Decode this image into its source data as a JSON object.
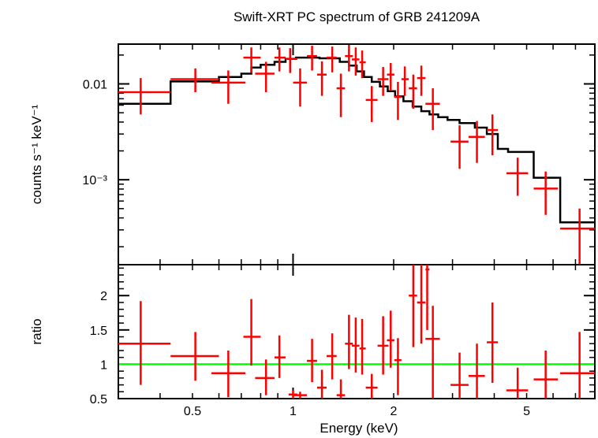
{
  "chart_data": [
    {
      "type": "scatter",
      "title": "Swift-XRT PC spectrum of GRB 241209A",
      "ylabel": "counts s⁻¹ keV⁻¹",
      "xlabel": "",
      "xscale": "log",
      "yscale": "log",
      "xlim": [
        0.3,
        8.0
      ],
      "ylim": [
        0.00013,
        0.026
      ],
      "yticks": [
        {
          "value": 0.01,
          "label": "0.01"
        },
        {
          "value": 0.001,
          "label": "10⁻³"
        }
      ],
      "series": [
        {
          "kind": "data-with-errors",
          "color": "#ff0000",
          "points": [
            {
              "x": 0.35,
              "xlo": 0.3,
              "xhi": 0.43,
              "y": 0.0082,
              "ylo": 0.0048,
              "yhi": 0.0115
            },
            {
              "x": 0.51,
              "xlo": 0.43,
              "xhi": 0.6,
              "y": 0.0112,
              "ylo": 0.0082,
              "yhi": 0.0145
            },
            {
              "x": 0.64,
              "xlo": 0.57,
              "xhi": 0.72,
              "y": 0.0103,
              "ylo": 0.0062,
              "yhi": 0.0138
            },
            {
              "x": 0.75,
              "xlo": 0.71,
              "xhi": 0.8,
              "y": 0.0188,
              "ylo": 0.013,
              "yhi": 0.024
            },
            {
              "x": 0.83,
              "xlo": 0.77,
              "xhi": 0.88,
              "y": 0.0128,
              "ylo": 0.0082,
              "yhi": 0.017
            },
            {
              "x": 0.91,
              "xlo": 0.88,
              "xhi": 0.95,
              "y": 0.0188,
              "ylo": 0.0135,
              "yhi": 0.024
            },
            {
              "x": 0.98,
              "xlo": 0.95,
              "xhi": 1.03,
              "y": 0.0183,
              "ylo": 0.013,
              "yhi": 0.0236
            },
            {
              "x": 1.05,
              "xlo": 1.0,
              "xhi": 1.1,
              "y": 0.0103,
              "ylo": 0.0058,
              "yhi": 0.0145
            },
            {
              "x": 1.14,
              "xlo": 1.1,
              "xhi": 1.18,
              "y": 0.0195,
              "ylo": 0.0138,
              "yhi": 0.025
            },
            {
              "x": 1.22,
              "xlo": 1.18,
              "xhi": 1.26,
              "y": 0.0125,
              "ylo": 0.0075,
              "yhi": 0.0172
            },
            {
              "x": 1.31,
              "xlo": 1.26,
              "xhi": 1.35,
              "y": 0.0188,
              "ylo": 0.0132,
              "yhi": 0.0245
            },
            {
              "x": 1.39,
              "xlo": 1.35,
              "xhi": 1.43,
              "y": 0.009,
              "ylo": 0.0045,
              "yhi": 0.0128
            },
            {
              "x": 1.47,
              "xlo": 1.43,
              "xhi": 1.51,
              "y": 0.0195,
              "ylo": 0.0135,
              "yhi": 0.0255
            },
            {
              "x": 1.54,
              "xlo": 1.5,
              "xhi": 1.58,
              "y": 0.018,
              "ylo": 0.0122,
              "yhi": 0.024
            },
            {
              "x": 1.61,
              "xlo": 1.58,
              "xhi": 1.65,
              "y": 0.0168,
              "ylo": 0.0115,
              "yhi": 0.0223
            },
            {
              "x": 1.72,
              "xlo": 1.65,
              "xhi": 1.79,
              "y": 0.0068,
              "ylo": 0.004,
              "yhi": 0.0095
            },
            {
              "x": 1.86,
              "xlo": 1.79,
              "xhi": 1.93,
              "y": 0.0112,
              "ylo": 0.0075,
              "yhi": 0.015
            },
            {
              "x": 1.96,
              "xlo": 1.91,
              "xhi": 2.01,
              "y": 0.0125,
              "ylo": 0.0085,
              "yhi": 0.0165
            },
            {
              "x": 2.06,
              "xlo": 2.01,
              "xhi": 2.11,
              "y": 0.0073,
              "ylo": 0.0042,
              "yhi": 0.0105
            },
            {
              "x": 2.16,
              "xlo": 2.11,
              "xhi": 2.22,
              "y": 0.0112,
              "ylo": 0.0075,
              "yhi": 0.0152
            },
            {
              "x": 2.29,
              "xlo": 2.22,
              "xhi": 2.35,
              "y": 0.009,
              "ylo": 0.0055,
              "yhi": 0.0125
            },
            {
              "x": 2.42,
              "xlo": 2.35,
              "xhi": 2.49,
              "y": 0.0115,
              "ylo": 0.0075,
              "yhi": 0.0155
            },
            {
              "x": 2.62,
              "xlo": 2.49,
              "xhi": 2.75,
              "y": 0.0062,
              "ylo": 0.0033,
              "yhi": 0.009
            },
            {
              "x": 3.15,
              "xlo": 2.96,
              "xhi": 3.35,
              "y": 0.0025,
              "ylo": 0.0013,
              "yhi": 0.0037
            },
            {
              "x": 3.55,
              "xlo": 3.35,
              "xhi": 3.75,
              "y": 0.0028,
              "ylo": 0.0015,
              "yhi": 0.0041
            },
            {
              "x": 3.95,
              "xlo": 3.8,
              "xhi": 4.1,
              "y": 0.0033,
              "ylo": 0.0018,
              "yhi": 0.0048
            },
            {
              "x": 4.7,
              "xlo": 4.35,
              "xhi": 5.05,
              "y": 0.00117,
              "ylo": 0.00068,
              "yhi": 0.0017
            },
            {
              "x": 5.7,
              "xlo": 5.25,
              "xhi": 6.2,
              "y": 0.00081,
              "ylo": 0.00043,
              "yhi": 0.00122
            },
            {
              "x": 7.2,
              "xlo": 6.3,
              "xhi": 8.0,
              "y": 0.00031,
              "ylo": 0.00013,
              "yhi": 0.0005
            }
          ]
        },
        {
          "kind": "model-step",
          "color": "#000000",
          "steps": [
            {
              "xlo": 0.3,
              "xhi": 0.43,
              "y": 0.0062
            },
            {
              "xlo": 0.43,
              "xhi": 0.6,
              "y": 0.0106
            },
            {
              "xlo": 0.6,
              "xhi": 0.7,
              "y": 0.0118
            },
            {
              "xlo": 0.7,
              "xhi": 0.75,
              "y": 0.0128
            },
            {
              "xlo": 0.75,
              "xhi": 0.8,
              "y": 0.0148
            },
            {
              "xlo": 0.8,
              "xhi": 0.88,
              "y": 0.0158
            },
            {
              "xlo": 0.88,
              "xhi": 0.95,
              "y": 0.017
            },
            {
              "xlo": 0.95,
              "xhi": 1.02,
              "y": 0.0182
            },
            {
              "xlo": 1.02,
              "xhi": 1.2,
              "y": 0.0188
            },
            {
              "xlo": 1.2,
              "xhi": 1.38,
              "y": 0.0185
            },
            {
              "xlo": 1.38,
              "xhi": 1.47,
              "y": 0.017
            },
            {
              "xlo": 1.47,
              "xhi": 1.55,
              "y": 0.0155
            },
            {
              "xlo": 1.55,
              "xhi": 1.63,
              "y": 0.0135
            },
            {
              "xlo": 1.63,
              "xhi": 1.72,
              "y": 0.0118
            },
            {
              "xlo": 1.72,
              "xhi": 1.82,
              "y": 0.0105
            },
            {
              "xlo": 1.82,
              "xhi": 1.92,
              "y": 0.0094
            },
            {
              "xlo": 1.92,
              "xhi": 2.02,
              "y": 0.0084
            },
            {
              "xlo": 2.02,
              "xhi": 2.14,
              "y": 0.0074
            },
            {
              "xlo": 2.14,
              "xhi": 2.28,
              "y": 0.0066
            },
            {
              "xlo": 2.28,
              "xhi": 2.42,
              "y": 0.0058
            },
            {
              "xlo": 2.42,
              "xhi": 2.56,
              "y": 0.0052
            },
            {
              "xlo": 2.56,
              "xhi": 2.72,
              "y": 0.0048
            },
            {
              "xlo": 2.72,
              "xhi": 2.9,
              "y": 0.0045
            },
            {
              "xlo": 2.9,
              "xhi": 3.15,
              "y": 0.0042
            },
            {
              "xlo": 3.15,
              "xhi": 3.5,
              "y": 0.0039
            },
            {
              "xlo": 3.5,
              "xhi": 3.8,
              "y": 0.0035
            },
            {
              "xlo": 3.8,
              "xhi": 4.1,
              "y": 0.003
            },
            {
              "xlo": 4.1,
              "xhi": 4.4,
              "y": 0.0021
            },
            {
              "xlo": 4.4,
              "xhi": 5.25,
              "y": 0.00195
            },
            {
              "xlo": 5.25,
              "xhi": 6.3,
              "y": 0.00105
            },
            {
              "xlo": 6.3,
              "xhi": 8.0,
              "y": 0.00036
            }
          ]
        }
      ]
    },
    {
      "type": "scatter",
      "title": "",
      "xlabel": "Energy (keV)",
      "ylabel": "ratio",
      "xscale": "log",
      "yscale": "linear",
      "xlim": [
        0.3,
        8.0
      ],
      "ylim": [
        0.5,
        2.45
      ],
      "xticks": [
        {
          "value": 0.5,
          "label": "0.5"
        },
        {
          "value": 1,
          "label": "1"
        },
        {
          "value": 2,
          "label": "2"
        },
        {
          "value": 5,
          "label": "5"
        }
      ],
      "yticks": [
        {
          "value": 0.5,
          "label": "0.5"
        },
        {
          "value": 1,
          "label": "1"
        },
        {
          "value": 1.5,
          "label": "1.5"
        },
        {
          "value": 2,
          "label": "2"
        }
      ],
      "reference_line": {
        "y": 1,
        "color": "#00ff00"
      },
      "series": [
        {
          "kind": "ratio-with-errors",
          "color": "#ff0000",
          "points": [
            {
              "x": 0.35,
              "xlo": 0.3,
              "xhi": 0.43,
              "y": 1.3,
              "ylo": 0.7,
              "yhi": 1.92
            },
            {
              "x": 0.51,
              "xlo": 0.43,
              "xhi": 0.6,
              "y": 1.12,
              "ylo": 0.76,
              "yhi": 1.47
            },
            {
              "x": 0.64,
              "xlo": 0.57,
              "xhi": 0.72,
              "y": 0.87,
              "ylo": 0.52,
              "yhi": 1.2
            },
            {
              "x": 0.75,
              "xlo": 0.71,
              "xhi": 0.8,
              "y": 1.4,
              "ylo": 0.98,
              "yhi": 1.95
            },
            {
              "x": 0.83,
              "xlo": 0.77,
              "xhi": 0.88,
              "y": 0.8,
              "ylo": 0.55,
              "yhi": 1.07
            },
            {
              "x": 0.91,
              "xlo": 0.88,
              "xhi": 0.95,
              "y": 1.1,
              "ylo": 0.8,
              "yhi": 1.42
            },
            {
              "x": 1.0,
              "xlo": 0.97,
              "xhi": 1.03,
              "y": 0.56,
              "ylo": 0.5,
              "yhi": 0.62
            },
            {
              "x": 1.05,
              "xlo": 1.0,
              "xhi": 1.1,
              "y": 0.55,
              "ylo": 0.5,
              "yhi": 0.6
            },
            {
              "x": 1.14,
              "xlo": 1.1,
              "xhi": 1.18,
              "y": 1.05,
              "ylo": 0.74,
              "yhi": 1.37
            },
            {
              "x": 1.22,
              "xlo": 1.18,
              "xhi": 1.26,
              "y": 0.66,
              "ylo": 0.5,
              "yhi": 0.92
            },
            {
              "x": 1.31,
              "xlo": 1.26,
              "xhi": 1.35,
              "y": 1.12,
              "ylo": 0.78,
              "yhi": 1.45
            },
            {
              "x": 1.39,
              "xlo": 1.35,
              "xhi": 1.43,
              "y": 0.55,
              "ylo": 0.5,
              "yhi": 0.78
            },
            {
              "x": 1.47,
              "xlo": 1.43,
              "xhi": 1.51,
              "y": 1.3,
              "ylo": 0.93,
              "yhi": 1.72
            },
            {
              "x": 1.54,
              "xlo": 1.5,
              "xhi": 1.58,
              "y": 1.27,
              "ylo": 0.88,
              "yhi": 1.68
            },
            {
              "x": 1.61,
              "xlo": 1.58,
              "xhi": 1.65,
              "y": 1.23,
              "ylo": 0.85,
              "yhi": 1.66
            },
            {
              "x": 1.72,
              "xlo": 1.65,
              "xhi": 1.79,
              "y": 0.66,
              "ylo": 0.5,
              "yhi": 0.86
            },
            {
              "x": 1.86,
              "xlo": 1.79,
              "xhi": 1.93,
              "y": 1.27,
              "ylo": 0.85,
              "yhi": 1.7
            },
            {
              "x": 1.96,
              "xlo": 1.91,
              "xhi": 2.01,
              "y": 1.35,
              "ylo": 0.95,
              "yhi": 1.78
            },
            {
              "x": 2.06,
              "xlo": 2.01,
              "xhi": 2.11,
              "y": 1.06,
              "ylo": 0.55,
              "yhi": 1.38
            },
            {
              "x": 2.29,
              "xlo": 2.22,
              "xhi": 2.35,
              "y": 2.0,
              "ylo": 1.25,
              "yhi": 2.45
            },
            {
              "x": 2.42,
              "xlo": 2.35,
              "xhi": 2.49,
              "y": 1.9,
              "ylo": 1.3,
              "yhi": 2.45
            },
            {
              "x": 2.52,
              "xlo": 2.49,
              "xhi": 2.56,
              "y": 2.38,
              "ylo": 1.5,
              "yhi": 2.45
            },
            {
              "x": 2.62,
              "xlo": 2.49,
              "xhi": 2.75,
              "y": 1.37,
              "ylo": 0.5,
              "yhi": 1.85
            },
            {
              "x": 3.15,
              "xlo": 2.96,
              "xhi": 3.35,
              "y": 0.7,
              "ylo": 0.5,
              "yhi": 1.17
            },
            {
              "x": 3.55,
              "xlo": 3.35,
              "xhi": 3.75,
              "y": 0.83,
              "ylo": 0.5,
              "yhi": 1.3
            },
            {
              "x": 3.95,
              "xlo": 3.8,
              "xhi": 4.1,
              "y": 1.32,
              "ylo": 0.73,
              "yhi": 1.9
            },
            {
              "x": 4.7,
              "xlo": 4.35,
              "xhi": 5.05,
              "y": 0.62,
              "ylo": 0.5,
              "yhi": 0.95
            },
            {
              "x": 5.7,
              "xlo": 5.25,
              "xhi": 6.2,
              "y": 0.78,
              "ylo": 0.5,
              "yhi": 1.2
            },
            {
              "x": 7.2,
              "xlo": 6.3,
              "xhi": 8.0,
              "y": 0.87,
              "ylo": 0.5,
              "yhi": 1.47
            }
          ]
        }
      ]
    }
  ]
}
